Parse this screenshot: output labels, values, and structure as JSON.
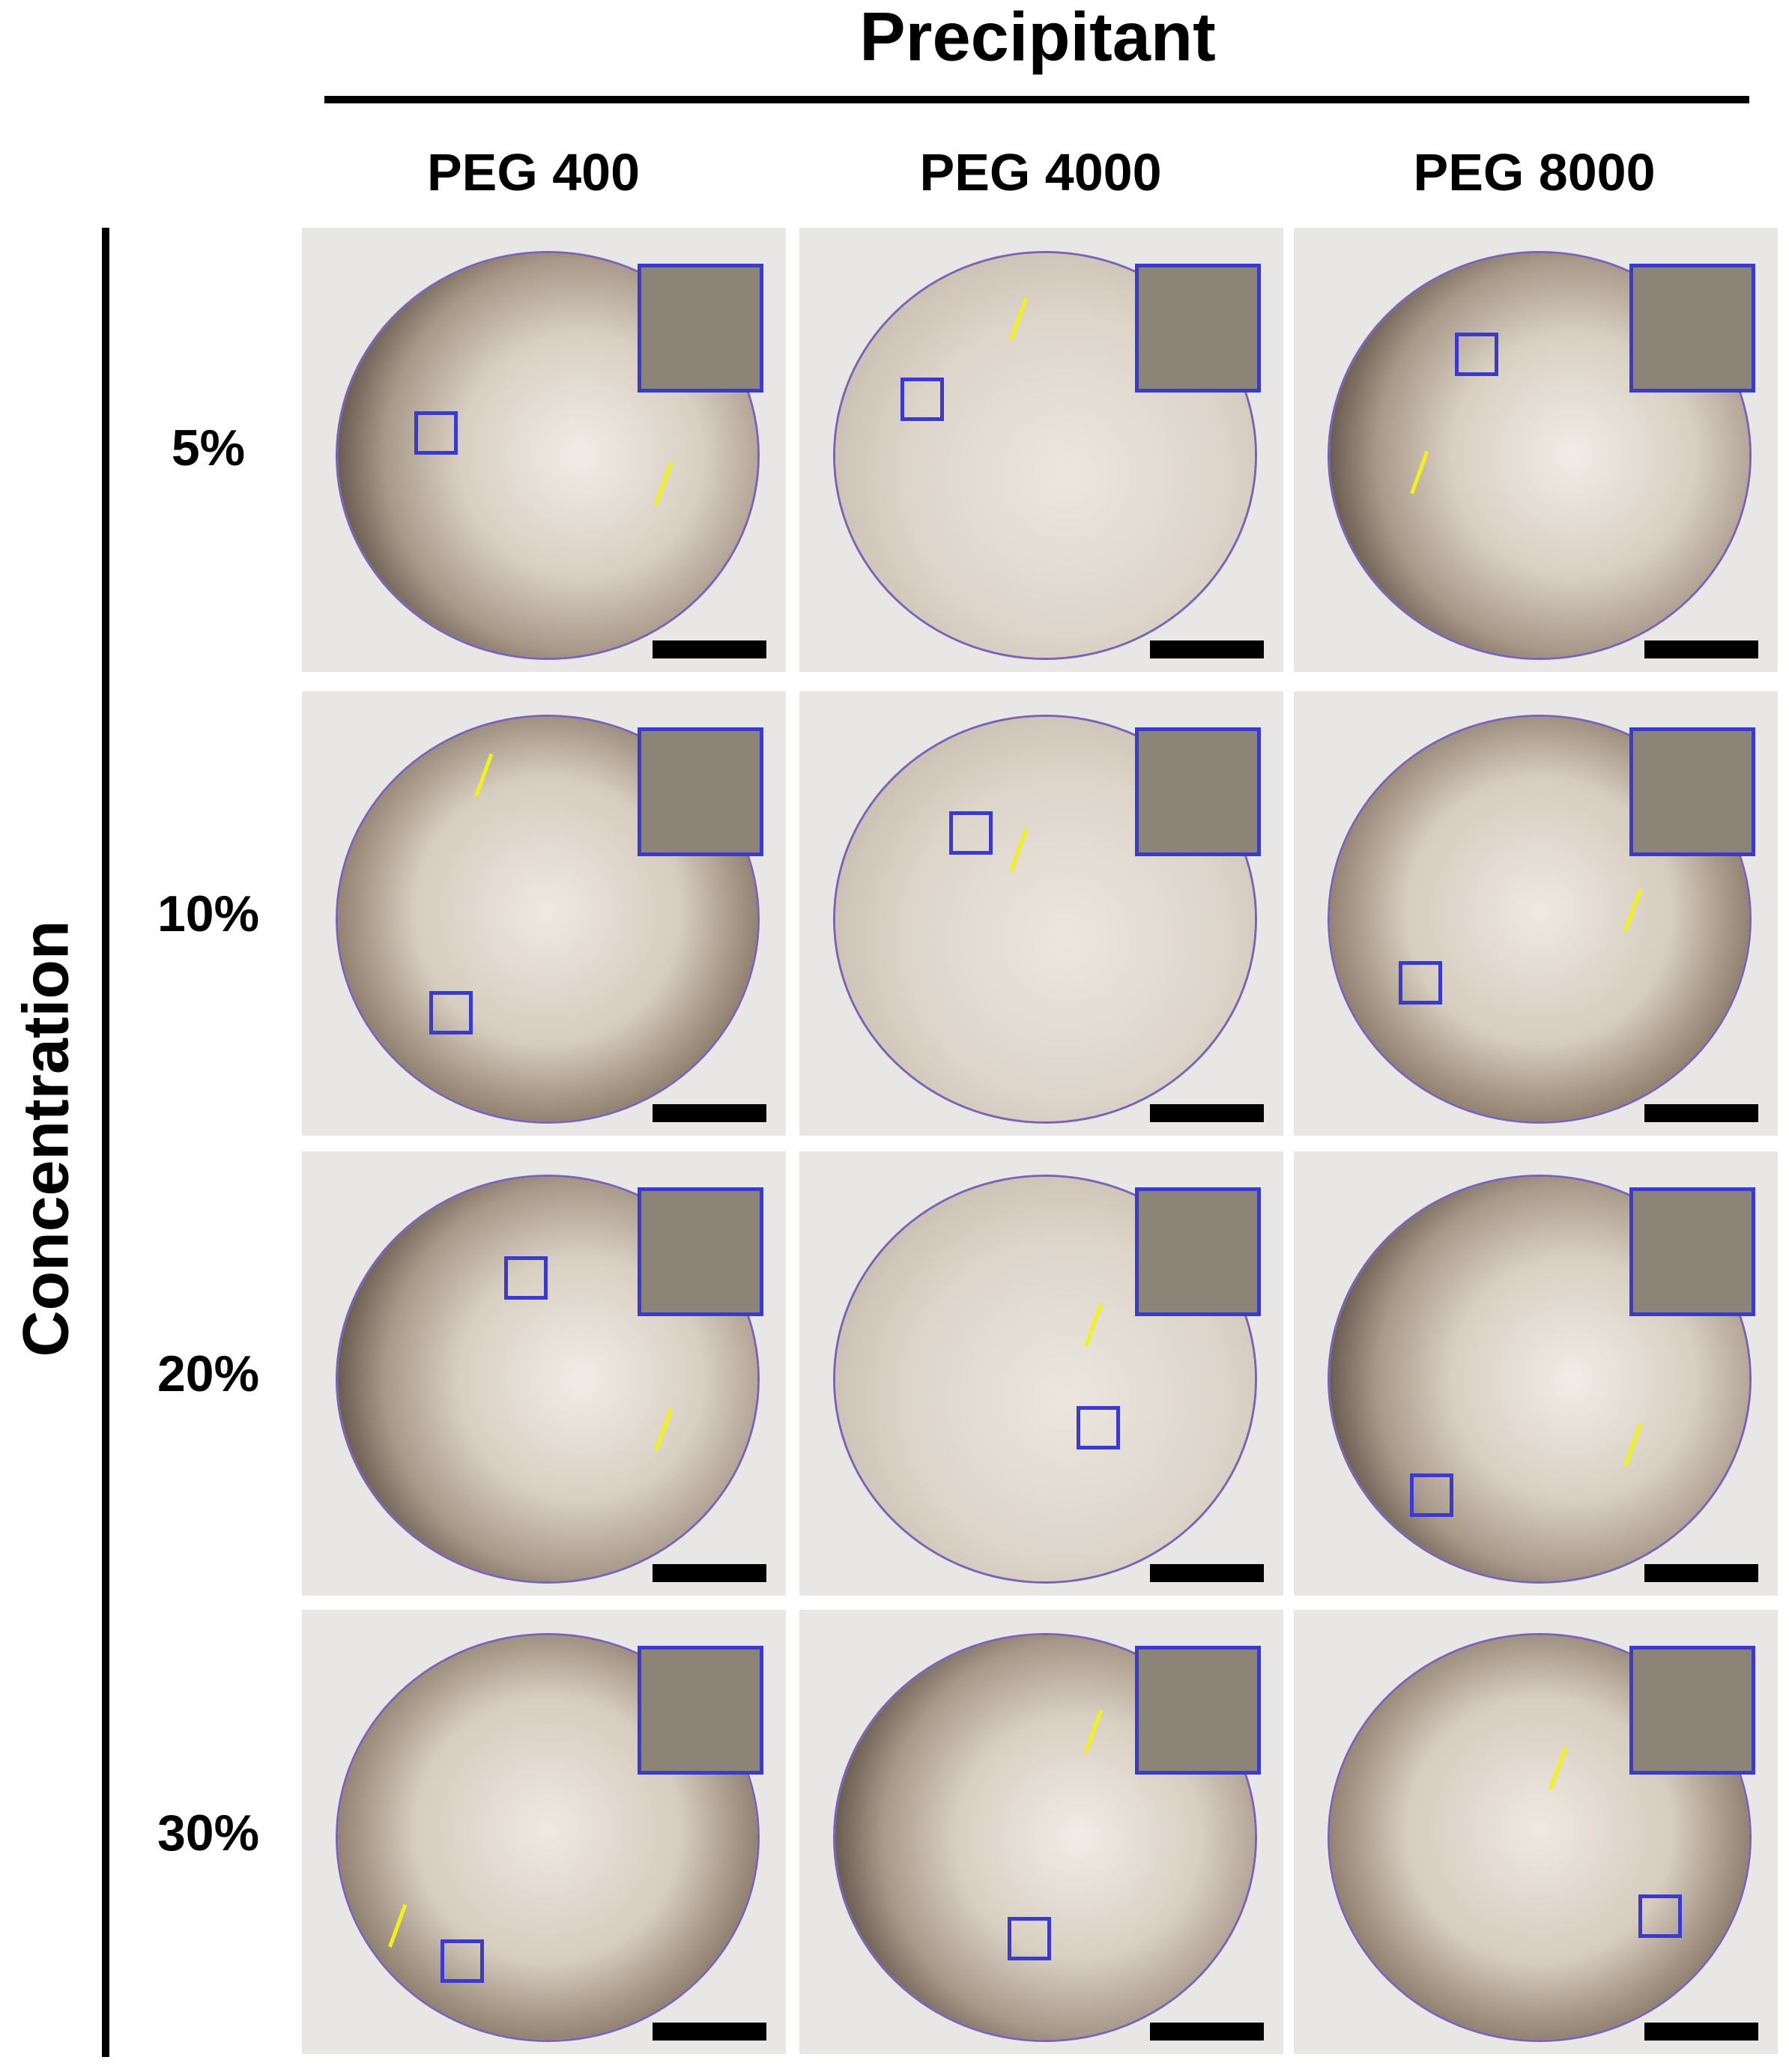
{
  "header": {
    "title": "Precipitant",
    "columns": [
      "PEG 400",
      "PEG 4000",
      "PEG 8000"
    ]
  },
  "side": {
    "title": "Concentration",
    "rows": [
      "5%",
      "10%",
      "20%",
      "30%"
    ]
  }
}
